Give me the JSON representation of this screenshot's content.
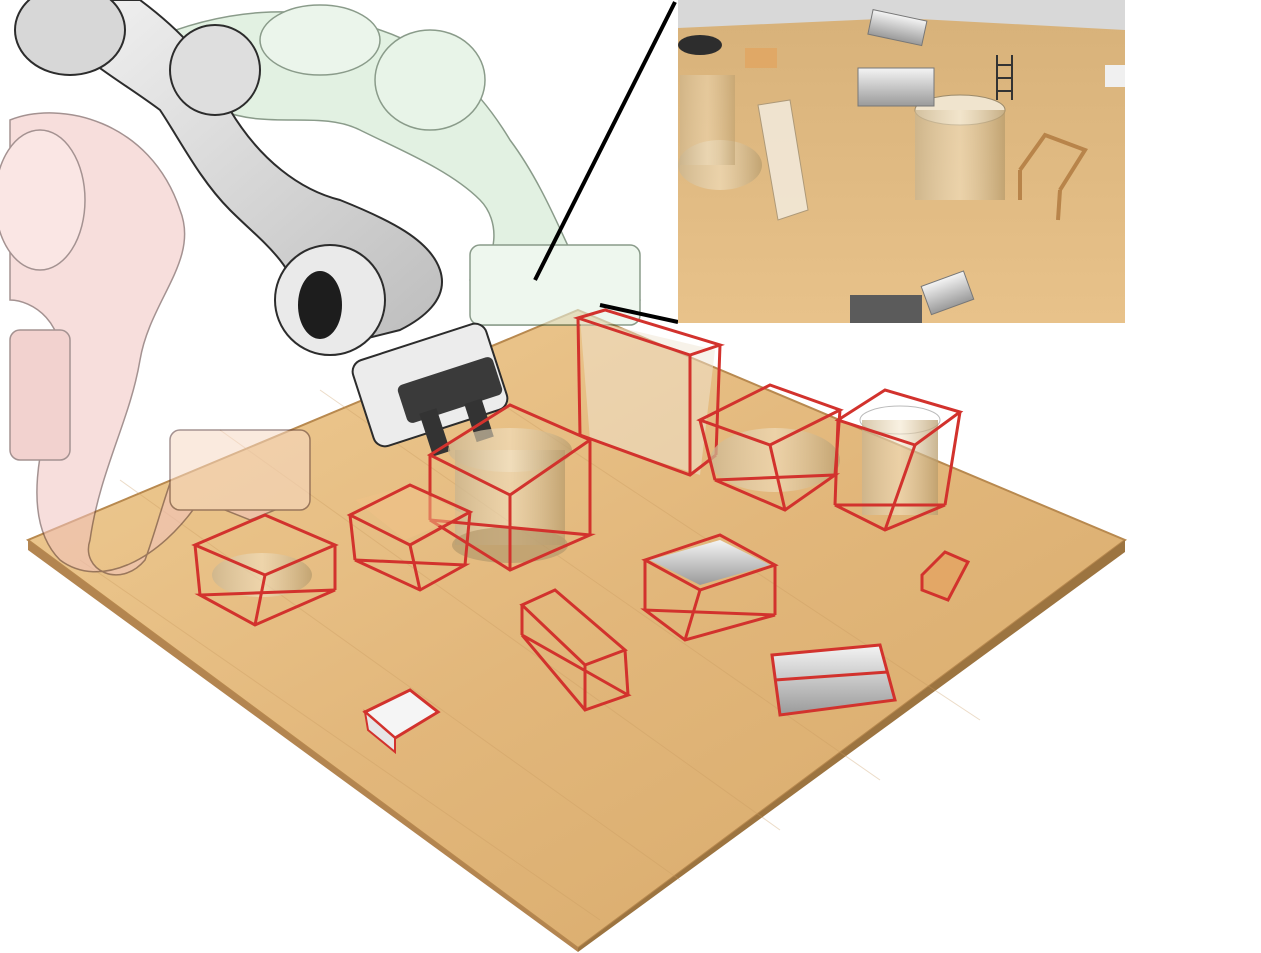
{
  "scene": {
    "colors": {
      "table_light": "#e9c48c",
      "table_dark": "#c99a5c",
      "table_edge": "#a77a45",
      "bbox": "#d2322d",
      "robot_grey": "#e6e6e6",
      "robot_outline": "#3a3a3a",
      "ghost_green": "#cfe8cf",
      "ghost_pink": "#f2c4c0",
      "inset_wall": "#d9d9d9",
      "inset_table": "#dcb780"
    },
    "icons": [
      "robot-arm",
      "gripper",
      "bounding-box",
      "glass-jar",
      "chair",
      "block",
      "ladder"
    ]
  }
}
